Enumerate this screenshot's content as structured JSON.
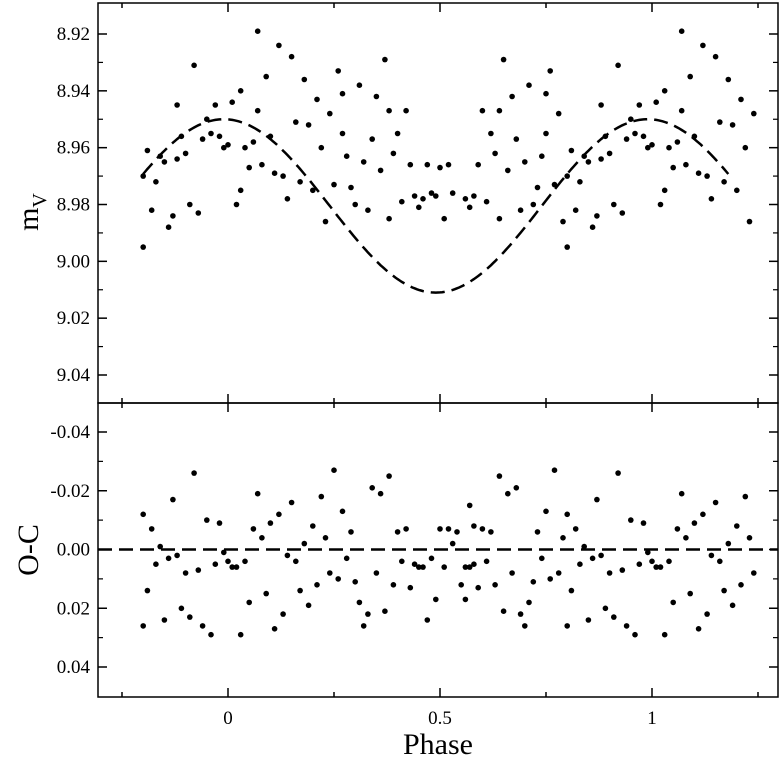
{
  "chart_data": [
    {
      "panel": "light curve",
      "type": "scatter",
      "xlabel": "Phase",
      "ylabel": "m",
      "ylabel_sub": "V",
      "xlim": [
        -0.3,
        1.3
      ],
      "ylim": [
        9.05,
        8.91
      ],
      "y_inverted": true,
      "x_ticks": [
        0,
        0.5,
        1
      ],
      "x_tick_labels": [
        "0",
        "0.5",
        "1"
      ],
      "y_ticks": [
        8.92,
        8.94,
        8.96,
        8.98,
        9.0,
        9.02,
        9.04
      ],
      "y_tick_labels": [
        "8.92",
        "8.94",
        "8.96",
        "8.98",
        "9.00",
        "9.02",
        "9.04"
      ],
      "fit_curve": {
        "style": "dashed",
        "mean": 8.9805,
        "amplitude": 0.0305,
        "phase_of_min": 0.49
      },
      "series": [
        {
          "points": [
            [
              -0.2,
              8.97
            ],
            [
              -0.2,
              8.995
            ],
            [
              -0.19,
              8.961
            ],
            [
              -0.18,
              8.982
            ],
            [
              -0.17,
              8.972
            ],
            [
              -0.16,
              8.963
            ],
            [
              -0.15,
              8.965
            ],
            [
              -0.14,
              8.988
            ],
            [
              -0.13,
              8.984
            ],
            [
              -0.12,
              8.945
            ],
            [
              -0.12,
              8.964
            ],
            [
              -0.11,
              8.956
            ],
            [
              -0.1,
              8.962
            ],
            [
              -0.09,
              8.98
            ],
            [
              -0.08,
              8.931
            ],
            [
              -0.07,
              8.983
            ],
            [
              -0.06,
              8.957
            ],
            [
              -0.05,
              8.95
            ],
            [
              -0.04,
              8.955
            ],
            [
              -0.03,
              8.945
            ],
            [
              -0.02,
              8.956
            ],
            [
              -0.01,
              8.96
            ],
            [
              0.0,
              8.959
            ],
            [
              0.01,
              8.944
            ],
            [
              0.02,
              8.98
            ],
            [
              0.03,
              8.94
            ],
            [
              0.03,
              8.975
            ],
            [
              0.04,
              8.96
            ],
            [
              0.05,
              8.967
            ],
            [
              0.06,
              8.958
            ],
            [
              0.07,
              8.919
            ],
            [
              0.07,
              8.947
            ],
            [
              0.08,
              8.966
            ],
            [
              0.09,
              8.935
            ],
            [
              0.1,
              8.956
            ],
            [
              0.11,
              8.969
            ],
            [
              0.12,
              8.924
            ],
            [
              0.13,
              8.97
            ],
            [
              0.14,
              8.978
            ],
            [
              0.15,
              8.928
            ],
            [
              0.16,
              8.951
            ],
            [
              0.17,
              8.972
            ],
            [
              0.18,
              8.936
            ],
            [
              0.19,
              8.952
            ],
            [
              0.2,
              8.975
            ],
            [
              0.21,
              8.943
            ],
            [
              0.22,
              8.96
            ],
            [
              0.23,
              8.986
            ],
            [
              0.24,
              8.948
            ],
            [
              0.25,
              8.973
            ],
            [
              0.26,
              8.933
            ],
            [
              0.27,
              8.941
            ],
            [
              0.27,
              8.955
            ],
            [
              0.28,
              8.963
            ],
            [
              0.29,
              8.974
            ],
            [
              0.3,
              8.98
            ],
            [
              0.31,
              8.938
            ],
            [
              0.32,
              8.965
            ],
            [
              0.33,
              8.982
            ],
            [
              0.34,
              8.957
            ],
            [
              0.35,
              8.942
            ],
            [
              0.36,
              8.968
            ],
            [
              0.37,
              8.929
            ],
            [
              0.38,
              8.947
            ],
            [
              0.38,
              8.985
            ],
            [
              0.39,
              8.962
            ],
            [
              0.4,
              8.955
            ],
            [
              0.41,
              8.979
            ],
            [
              0.42,
              8.947
            ],
            [
              0.43,
              8.966
            ],
            [
              0.44,
              8.977
            ],
            [
              0.45,
              8.981
            ],
            [
              0.46,
              8.978
            ],
            [
              0.47,
              8.966
            ],
            [
              0.48,
              8.976
            ],
            [
              0.49,
              8.977
            ],
            [
              0.5,
              8.967
            ],
            [
              0.51,
              8.985
            ],
            [
              0.52,
              8.966
            ],
            [
              0.53,
              8.976
            ]
          ]
        }
      ]
    },
    {
      "panel": "residuals",
      "type": "scatter",
      "xlabel": "Phase",
      "ylabel": "O-C",
      "xlim": [
        -0.3,
        1.3
      ],
      "ylim": [
        0.05,
        -0.05
      ],
      "y_inverted": true,
      "x_ticks": [
        0,
        0.5,
        1
      ],
      "x_tick_labels": [
        "0",
        "0.5",
        "1"
      ],
      "y_ticks": [
        -0.04,
        -0.02,
        0.0,
        0.02,
        0.04
      ],
      "y_tick_labels": [
        "-0.04",
        "-0.02",
        "0.00",
        "0.02",
        "0.04"
      ],
      "zero_line": {
        "y": 0.0,
        "style": "dashed"
      },
      "series": [
        {
          "points": [
            [
              -0.2,
              -0.012
            ],
            [
              -0.2,
              0.026
            ],
            [
              -0.19,
              0.014
            ],
            [
              -0.18,
              -0.007
            ],
            [
              -0.17,
              0.005
            ],
            [
              -0.16,
              -0.001
            ],
            [
              -0.15,
              0.024
            ],
            [
              -0.14,
              0.003
            ],
            [
              -0.13,
              -0.017
            ],
            [
              -0.12,
              0.002
            ],
            [
              -0.11,
              0.02
            ],
            [
              -0.1,
              0.008
            ],
            [
              -0.09,
              0.023
            ],
            [
              -0.08,
              -0.026
            ],
            [
              -0.07,
              0.007
            ],
            [
              -0.06,
              0.026
            ],
            [
              -0.05,
              -0.01
            ],
            [
              -0.04,
              0.029
            ],
            [
              -0.03,
              0.005
            ],
            [
              -0.02,
              -0.009
            ],
            [
              -0.01,
              0.001
            ],
            [
              0.0,
              0.004
            ],
            [
              0.01,
              0.006
            ],
            [
              0.02,
              0.006
            ],
            [
              0.03,
              0.029
            ],
            [
              0.04,
              0.004
            ],
            [
              0.05,
              0.018
            ],
            [
              0.06,
              -0.007
            ],
            [
              0.07,
              -0.019
            ],
            [
              0.08,
              -0.004
            ],
            [
              0.09,
              0.015
            ],
            [
              0.1,
              -0.009
            ],
            [
              0.11,
              0.027
            ],
            [
              0.12,
              -0.012
            ],
            [
              0.13,
              0.022
            ],
            [
              0.14,
              0.002
            ],
            [
              0.15,
              -0.016
            ],
            [
              0.16,
              0.004
            ],
            [
              0.17,
              0.014
            ],
            [
              0.18,
              -0.002
            ],
            [
              0.19,
              0.019
            ],
            [
              0.2,
              -0.008
            ],
            [
              0.21,
              0.012
            ],
            [
              0.22,
              -0.018
            ],
            [
              0.23,
              -0.004
            ],
            [
              0.24,
              0.008
            ],
            [
              0.25,
              -0.027
            ],
            [
              0.26,
              0.01
            ],
            [
              0.27,
              -0.013
            ],
            [
              0.28,
              0.003
            ],
            [
              0.29,
              -0.006
            ],
            [
              0.3,
              0.011
            ],
            [
              0.31,
              0.018
            ],
            [
              0.32,
              0.026
            ],
            [
              0.33,
              0.022
            ],
            [
              0.34,
              -0.021
            ],
            [
              0.35,
              0.008
            ],
            [
              0.36,
              -0.019
            ],
            [
              0.37,
              0.021
            ],
            [
              0.38,
              -0.025
            ],
            [
              0.39,
              0.012
            ],
            [
              0.4,
              -0.006
            ],
            [
              0.41,
              0.004
            ],
            [
              0.42,
              -0.007
            ],
            [
              0.43,
              0.013
            ],
            [
              0.44,
              0.005
            ],
            [
              0.45,
              0.006
            ],
            [
              0.46,
              0.006
            ],
            [
              0.47,
              0.024
            ],
            [
              0.48,
              0.003
            ],
            [
              0.49,
              0.017
            ],
            [
              0.5,
              -0.007
            ],
            [
              0.51,
              0.006
            ],
            [
              0.52,
              -0.007
            ],
            [
              0.53,
              -0.002
            ],
            [
              0.54,
              -0.006
            ],
            [
              0.55,
              0.012
            ],
            [
              0.56,
              0.017
            ],
            [
              0.57,
              -0.015
            ],
            [
              0.58,
              -0.008
            ]
          ]
        }
      ]
    }
  ]
}
